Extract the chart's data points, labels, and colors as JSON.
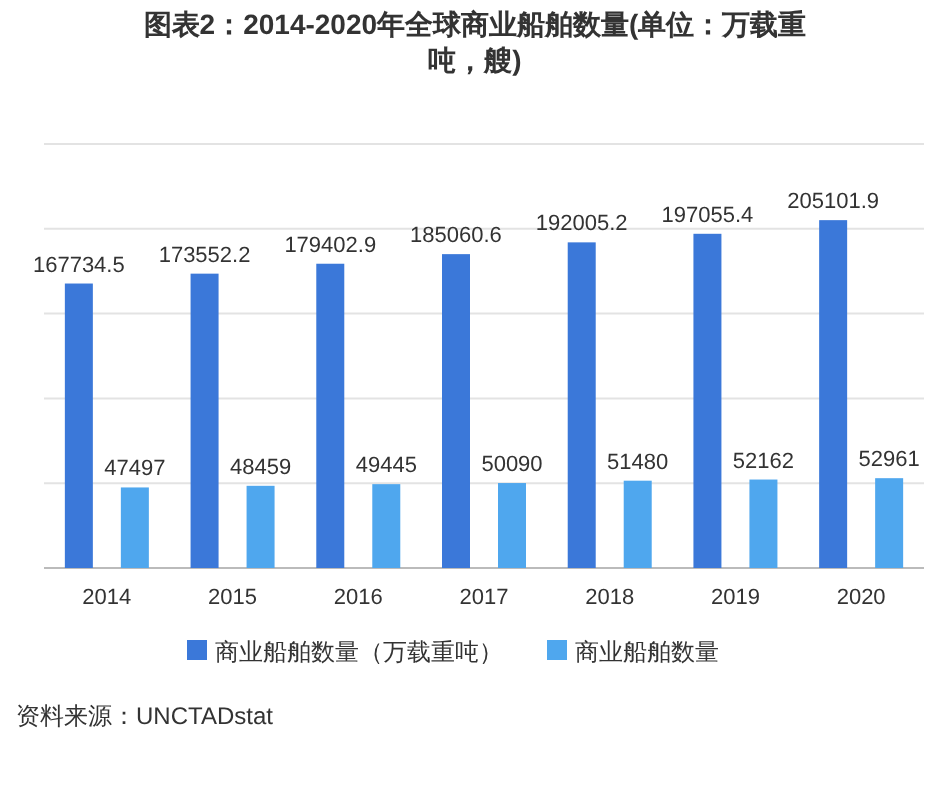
{
  "chart_data": {
    "type": "bar",
    "title": "图表2：2014-2020年全球商业船舶数量(单位：万载重吨，艘)",
    "categories": [
      "2014",
      "2015",
      "2016",
      "2017",
      "2018",
      "2019",
      "2020"
    ],
    "series": [
      {
        "name": "商业船舶数量（万载重吨）",
        "color": "#3b78d9",
        "values": [
          167734.5,
          173552.2,
          179402.9,
          185060.6,
          192005.2,
          197055.4,
          205101.9
        ]
      },
      {
        "name": "商业船舶数量",
        "color": "#4fa7ee",
        "values": [
          47497,
          48459,
          49445,
          50090,
          51480,
          52162,
          52961
        ]
      }
    ],
    "ylim": [
      0,
      250000
    ],
    "yticks": [
      {
        "value": 0,
        "label": null
      },
      {
        "value": 50000,
        "label": null
      },
      {
        "value": 100000,
        "label": null
      },
      {
        "value": 150000,
        "label": null
      },
      {
        "value": 200000,
        "label": null
      },
      {
        "value": 250000,
        "label": null
      }
    ],
    "tick_labels": "x",
    "grid": "y",
    "legend": "bottom",
    "data_labels": true,
    "annotations": [
      "资料来源：UNCTADstat"
    ]
  }
}
